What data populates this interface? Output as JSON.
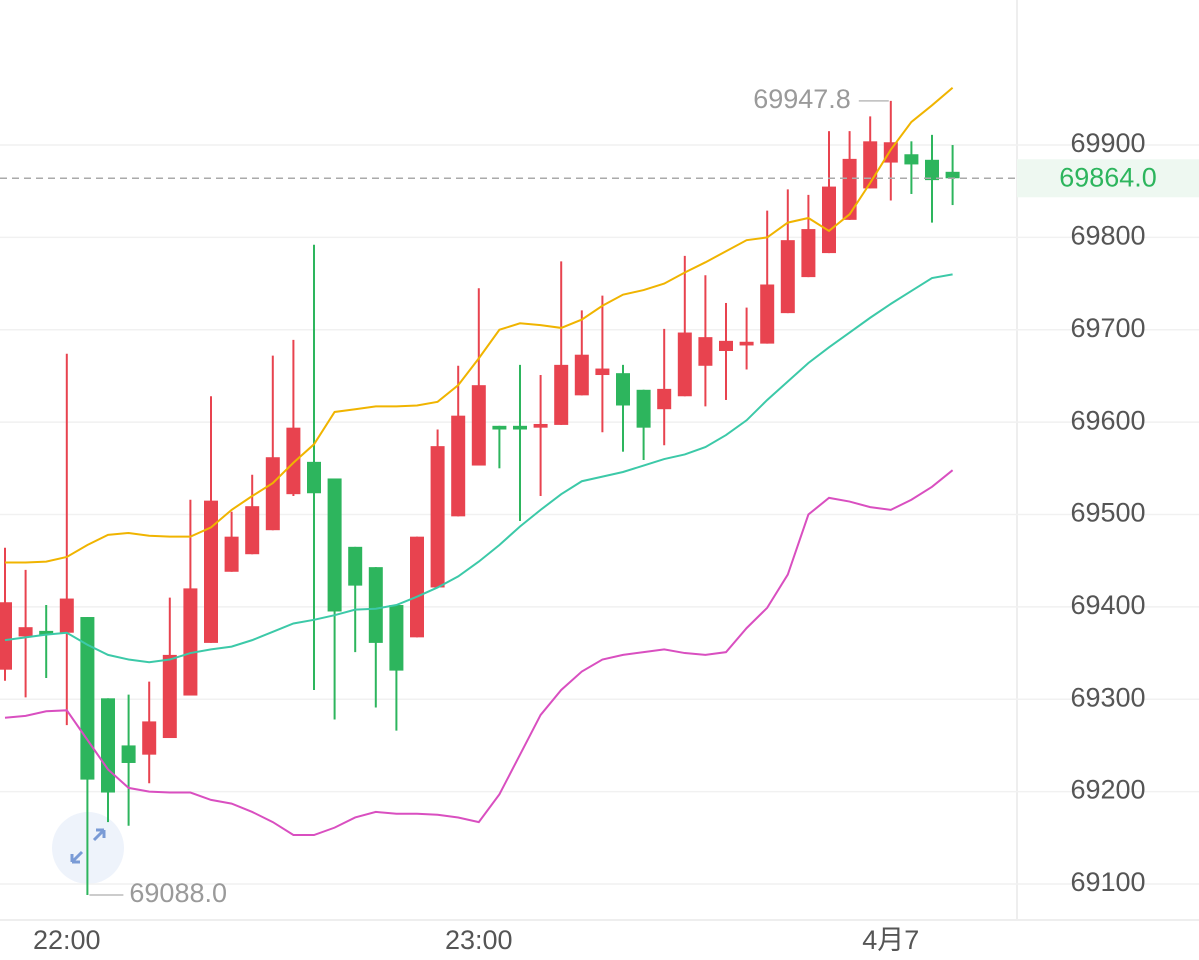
{
  "chart_data": {
    "type": "candlestick",
    "categories": [
      null,
      null,
      null,
      "22:00",
      null,
      null,
      null,
      null,
      null,
      null,
      null,
      null,
      null,
      null,
      null,
      null,
      null,
      null,
      null,
      null,
      null,
      null,
      null,
      "23:00",
      null,
      null,
      null,
      null,
      null,
      null,
      null,
      null,
      null,
      null,
      null,
      null,
      null,
      null,
      null,
      null,
      null,
      null,
      null,
      "4月7",
      null,
      null,
      null
    ],
    "open": [
      69332,
      69368,
      69374,
      69372,
      69389,
      69301,
      69250,
      69240,
      69258,
      69304,
      69361,
      69438,
      69457,
      69483,
      69522,
      69557,
      69539,
      69465,
      69443,
      69402,
      69367,
      69421,
      69498,
      69553,
      69596,
      69596,
      69594,
      69597,
      69629,
      69651,
      69653,
      69635,
      69614,
      69628,
      69661,
      69677,
      69683,
      69685,
      69718,
      69757,
      69783,
      69819,
      69853,
      69881,
      69890,
      69884,
      69871
    ],
    "high": [
      69464,
      69440,
      69402,
      69674,
      69389,
      69301,
      69305,
      69319,
      69410,
      69516,
      69628,
      69503,
      69543,
      69672,
      69689,
      69792,
      69539,
      69465,
      69443,
      69402,
      69476,
      69592,
      69661,
      69745,
      69596,
      69662,
      69651,
      69774,
      69721,
      69737,
      69662,
      69635,
      69701,
      69780,
      69759,
      69729,
      69724,
      69829,
      69852,
      69846,
      69915,
      69915,
      69931,
      69947.8,
      69904,
      69911,
      69900
    ],
    "low": [
      69320,
      69302,
      69323,
      69272,
      69088,
      69167,
      69163,
      69209,
      69258,
      69304,
      69361,
      69438,
      69457,
      69483,
      69520,
      69310,
      69278,
      69351,
      69291,
      69266,
      69367,
      69421,
      69498,
      69553,
      69550,
      69493,
      69520,
      69597,
      69629,
      69589,
      69568,
      69559,
      69575,
      69628,
      69617,
      69624,
      69657,
      69685,
      69718,
      69757,
      69783,
      69819,
      69853,
      69840,
      69847,
      69816,
      69835
    ],
    "close": [
      69405,
      69378,
      69370,
      69409,
      69213,
      69199,
      69231,
      69276,
      69348,
      69420,
      69515,
      69476,
      69509,
      69562,
      69594,
      69523,
      69395,
      69423,
      69361,
      69331,
      69476,
      69574,
      69607,
      69640,
      69592,
      69592,
      69598,
      69662,
      69673,
      69658,
      69618,
      69594,
      69636,
      69697,
      69692,
      69688,
      69687,
      69749,
      69797,
      69809,
      69855,
      69885,
      69904,
      69903,
      69879,
      69862,
      69864
    ],
    "up_color": "#e8434f",
    "down_color": "#2db55d",
    "series": [
      {
        "color": "#f0b400",
        "values": [
          69448,
          69448,
          69449,
          69454,
          69467,
          69478,
          69480,
          69477,
          69476,
          69476,
          69486,
          69505,
          69520,
          69534,
          69556,
          69576,
          69611,
          69614,
          69617,
          69617,
          69618,
          69622,
          69640,
          69669,
          69700,
          69707,
          69705,
          69702,
          69711,
          69726,
          69738,
          69743,
          69750,
          69762,
          69773,
          69785,
          69797,
          69800,
          69816,
          69821,
          69807,
          69825,
          69859,
          69895,
          69925,
          69943,
          69962
        ]
      },
      {
        "color": "#3cc9a8",
        "values": [
          69364,
          69367,
          69370,
          69372,
          69359,
          69348,
          69343,
          69340,
          69343,
          69350,
          69354,
          69357,
          69364,
          69373,
          69382,
          69386,
          69391,
          69397,
          69398,
          69402,
          69411,
          69421,
          69433,
          69449,
          69467,
          69487,
          69505,
          69522,
          69536,
          69541,
          69546,
          69553,
          69560,
          69565,
          69573,
          69586,
          69602,
          69624,
          69644,
          69664,
          69681,
          69697,
          69713,
          69728,
          69742,
          69756,
          69760
        ]
      },
      {
        "color": "#d94fc0",
        "values": [
          69280,
          69282,
          69287,
          69288,
          69256,
          69224,
          69204,
          69200,
          69199,
          69199,
          69191,
          69187,
          69178,
          69167,
          69153,
          69153,
          69161,
          69172,
          69178,
          69176,
          69176,
          69175,
          69172,
          69167,
          69197,
          69240,
          69283,
          69310,
          69330,
          69343,
          69348,
          69351,
          69354,
          69350,
          69348,
          69351,
          69377,
          69399,
          69435,
          69500,
          69518,
          69514,
          69508,
          69505,
          69516,
          69530,
          69548
        ]
      }
    ],
    "ylim": [
      69061,
      70057
    ],
    "yticks": [
      69100,
      69200,
      69300,
      69400,
      69500,
      69600,
      69700,
      69800,
      69900
    ],
    "grid": true,
    "max_label": {
      "value": 69947.8,
      "label": "69947.8"
    },
    "min_label": {
      "value": 69088,
      "label": "69088.0"
    },
    "last_price": {
      "value": 69864,
      "label": "69864.0"
    }
  }
}
